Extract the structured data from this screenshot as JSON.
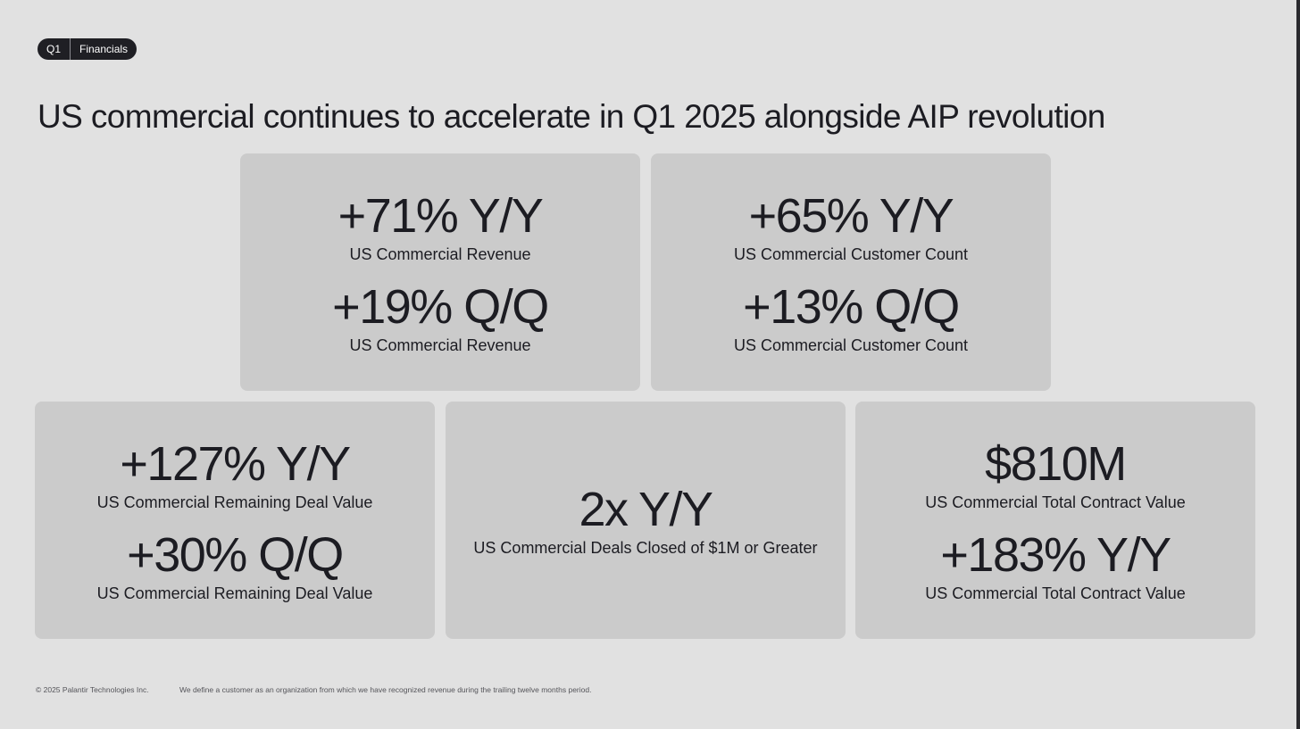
{
  "header": {
    "badge_quarter": "Q1",
    "badge_section": "Financials"
  },
  "title": "US commercial continues to accelerate in Q1 2025 alongside AIP revolution",
  "cards": [
    {
      "metrics": [
        {
          "value": "+71% Y/Y",
          "label": "US Commercial Revenue"
        },
        {
          "value": "+19% Q/Q",
          "label": "US Commercial Revenue"
        }
      ]
    },
    {
      "metrics": [
        {
          "value": "+65% Y/Y",
          "label": "US Commercial Customer Count"
        },
        {
          "value": "+13% Q/Q",
          "label": "US Commercial Customer Count"
        }
      ]
    },
    {
      "metrics": [
        {
          "value": "+127% Y/Y",
          "label": "US Commercial Remaining Deal Value"
        },
        {
          "value": "+30% Q/Q",
          "label": "US Commercial Remaining Deal Value"
        }
      ]
    },
    {
      "metrics": [
        {
          "value": "2x Y/Y",
          "label": "US Commercial Deals Closed of $1M or Greater"
        }
      ]
    },
    {
      "metrics": [
        {
          "value": "$810M",
          "label": "US Commercial Total Contract Value"
        },
        {
          "value": "+183% Y/Y",
          "label": "US Commercial Total Contract Value"
        }
      ]
    }
  ],
  "footer": {
    "copyright": "© 2025 Palantir Technologies Inc.",
    "note": "We define a customer as an organization from which we have recognized revenue during the trailing twelve months period."
  },
  "colors": {
    "background": "#e1e1e1",
    "card": "#cbcbcb",
    "text": "#1c1c22",
    "badge": "#1f1f24"
  }
}
